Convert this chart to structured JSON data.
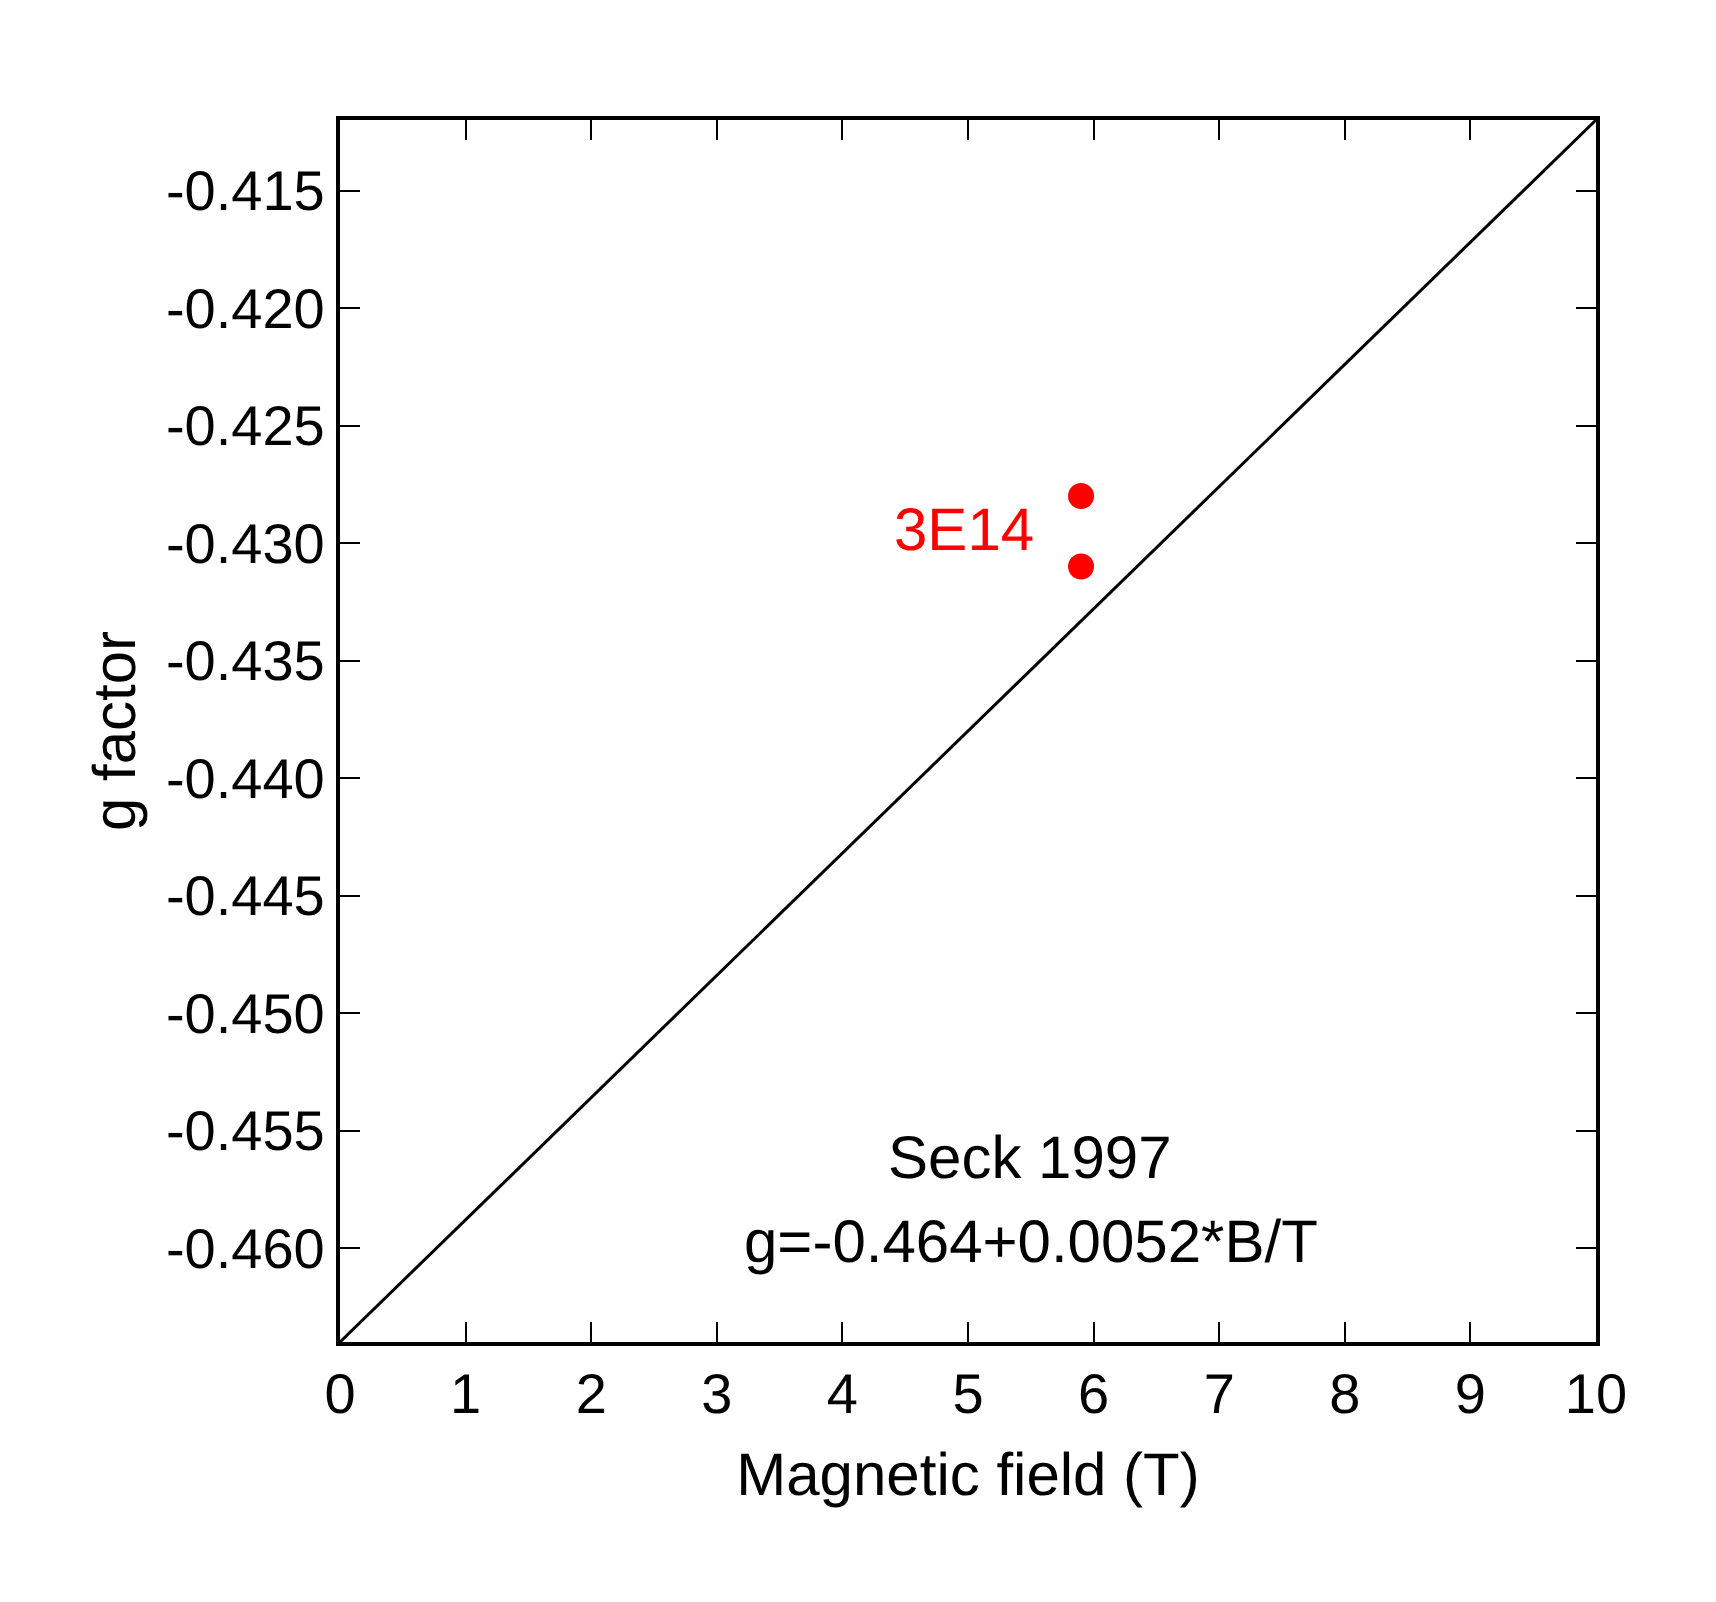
{
  "chart_data": {
    "type": "scatter",
    "xlabel": "Magnetic field (T)",
    "ylabel": "g factor",
    "xlim": [
      0,
      10
    ],
    "xticks": [
      0,
      1,
      2,
      3,
      4,
      5,
      6,
      7,
      8,
      9,
      10
    ],
    "ylim": [
      -0.464,
      -0.412
    ],
    "yticks": [
      {
        "value": -0.46,
        "label": "-0.460"
      },
      -0.455,
      {
        "value": -0.45,
        "label": "-0.450"
      },
      -0.445,
      {
        "value": -0.44,
        "label": "-0.440"
      },
      -0.435,
      {
        "value": -0.43,
        "label": "-0.430"
      },
      -0.425,
      {
        "value": -0.42,
        "label": "-0.420"
      },
      -0.415
    ],
    "legend": false,
    "marker": "circle",
    "series": [
      {
        "type": "line",
        "color": "#000000",
        "x": [
          0,
          10
        ],
        "values": [
          -0.464,
          -0.412
        ],
        "marker": "none"
      },
      {
        "name": "3E14",
        "color": "#ff0000",
        "x": [
          5.9,
          5.9
        ],
        "values": [
          -0.428,
          -0.431
        ]
      }
    ],
    "annotations": [
      "Seck 1997",
      "g=-0.464+0.0052*B/T"
    ]
  }
}
